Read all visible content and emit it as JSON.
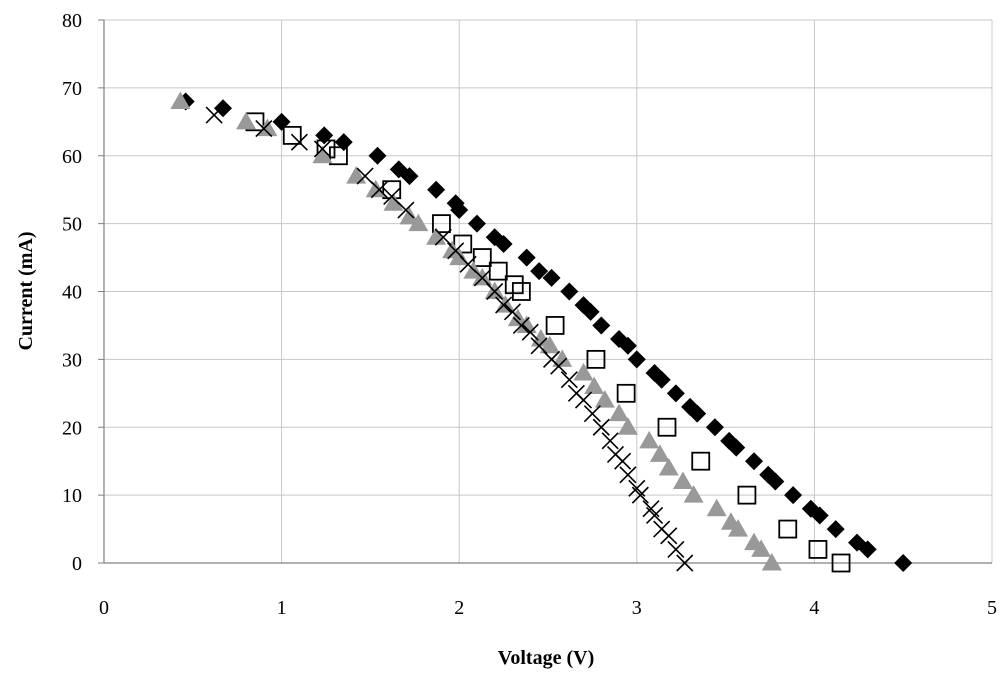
{
  "chart_data": {
    "type": "scatter",
    "title": "",
    "xlabel": "Voltage (V)",
    "ylabel": "Current (mA)",
    "xlim": [
      0,
      5
    ],
    "ylim": [
      0,
      80
    ],
    "xticks": [
      "0",
      "1",
      "2",
      "3",
      "4",
      "5"
    ],
    "yticks": [
      "0",
      "10",
      "20",
      "30",
      "40",
      "50",
      "60",
      "70",
      "80"
    ],
    "grid": true,
    "legend": "none",
    "series": [
      {
        "marker": "diamond",
        "color": "#000000",
        "points": [
          [
            0.46,
            68
          ],
          [
            0.67,
            67
          ],
          [
            1.0,
            65
          ],
          [
            1.24,
            63
          ],
          [
            1.35,
            62
          ],
          [
            1.54,
            60
          ],
          [
            1.66,
            58
          ],
          [
            1.72,
            57
          ],
          [
            1.87,
            55
          ],
          [
            1.98,
            53
          ],
          [
            2.0,
            52
          ],
          [
            2.1,
            50
          ],
          [
            2.2,
            48
          ],
          [
            2.25,
            47
          ],
          [
            2.38,
            45
          ],
          [
            2.45,
            43
          ],
          [
            2.52,
            42
          ],
          [
            2.62,
            40
          ],
          [
            2.7,
            38
          ],
          [
            2.74,
            37
          ],
          [
            2.8,
            35
          ],
          [
            2.9,
            33
          ],
          [
            2.95,
            32
          ],
          [
            3.0,
            30
          ],
          [
            3.1,
            28
          ],
          [
            3.14,
            27
          ],
          [
            3.22,
            25
          ],
          [
            3.3,
            23
          ],
          [
            3.34,
            22
          ],
          [
            3.44,
            20
          ],
          [
            3.52,
            18
          ],
          [
            3.56,
            17
          ],
          [
            3.66,
            15
          ],
          [
            3.74,
            13
          ],
          [
            3.78,
            12
          ],
          [
            3.88,
            10
          ],
          [
            3.98,
            8
          ],
          [
            4.03,
            7
          ],
          [
            4.12,
            5
          ],
          [
            4.24,
            3
          ],
          [
            4.3,
            2
          ],
          [
            4.5,
            0
          ]
        ]
      },
      {
        "marker": "open-square",
        "color": "#000000",
        "points": [
          [
            0.85,
            65
          ],
          [
            1.06,
            63
          ],
          [
            1.25,
            61
          ],
          [
            1.32,
            60
          ],
          [
            1.62,
            55
          ],
          [
            1.9,
            50
          ],
          [
            2.02,
            47
          ],
          [
            2.13,
            45
          ],
          [
            2.22,
            43
          ],
          [
            2.31,
            41
          ],
          [
            2.35,
            40
          ],
          [
            2.54,
            35
          ],
          [
            2.77,
            30
          ],
          [
            2.94,
            25
          ],
          [
            3.17,
            20
          ],
          [
            3.36,
            15
          ],
          [
            3.62,
            10
          ],
          [
            3.85,
            5
          ],
          [
            4.02,
            2
          ],
          [
            4.15,
            0
          ]
        ]
      },
      {
        "marker": "triangle",
        "color": "#999999",
        "points": [
          [
            0.43,
            68
          ],
          [
            0.8,
            65
          ],
          [
            0.92,
            64
          ],
          [
            1.23,
            60
          ],
          [
            1.42,
            57
          ],
          [
            1.53,
            55
          ],
          [
            1.63,
            53
          ],
          [
            1.72,
            51
          ],
          [
            1.77,
            50
          ],
          [
            1.87,
            48
          ],
          [
            1.96,
            46
          ],
          [
            2.0,
            45
          ],
          [
            2.08,
            43
          ],
          [
            2.13,
            42
          ],
          [
            2.2,
            40
          ],
          [
            2.26,
            38
          ],
          [
            2.33,
            36
          ],
          [
            2.38,
            35
          ],
          [
            2.46,
            33
          ],
          [
            2.51,
            32
          ],
          [
            2.58,
            30
          ],
          [
            2.7,
            28
          ],
          [
            2.76,
            26
          ],
          [
            2.82,
            24
          ],
          [
            2.9,
            22
          ],
          [
            2.95,
            20
          ],
          [
            3.07,
            18
          ],
          [
            3.13,
            16
          ],
          [
            3.18,
            14
          ],
          [
            3.26,
            12
          ],
          [
            3.32,
            10
          ],
          [
            3.45,
            8
          ],
          [
            3.53,
            6
          ],
          [
            3.57,
            5
          ],
          [
            3.66,
            3
          ],
          [
            3.7,
            2
          ],
          [
            3.76,
            0
          ]
        ]
      },
      {
        "marker": "x",
        "color": "#000000",
        "points": [
          [
            0.62,
            66
          ],
          [
            0.9,
            64
          ],
          [
            1.1,
            62
          ],
          [
            1.23,
            61
          ],
          [
            1.47,
            57
          ],
          [
            1.55,
            55
          ],
          [
            1.62,
            54
          ],
          [
            1.7,
            52
          ],
          [
            1.91,
            48
          ],
          [
            1.98,
            46
          ],
          [
            2.05,
            44
          ],
          [
            2.13,
            42
          ],
          [
            2.2,
            40
          ],
          [
            2.25,
            38
          ],
          [
            2.3,
            37
          ],
          [
            2.35,
            35
          ],
          [
            2.4,
            34
          ],
          [
            2.45,
            32
          ],
          [
            2.52,
            30
          ],
          [
            2.56,
            29
          ],
          [
            2.62,
            27
          ],
          [
            2.66,
            25
          ],
          [
            2.7,
            24
          ],
          [
            2.75,
            22
          ],
          [
            2.8,
            20
          ],
          [
            2.85,
            18
          ],
          [
            2.88,
            16
          ],
          [
            2.92,
            15
          ],
          [
            2.95,
            13
          ],
          [
            3.0,
            11
          ],
          [
            3.02,
            10
          ],
          [
            3.08,
            8
          ],
          [
            3.1,
            7
          ],
          [
            3.14,
            5
          ],
          [
            3.18,
            4
          ],
          [
            3.22,
            2
          ],
          [
            3.27,
            0
          ]
        ]
      }
    ]
  }
}
